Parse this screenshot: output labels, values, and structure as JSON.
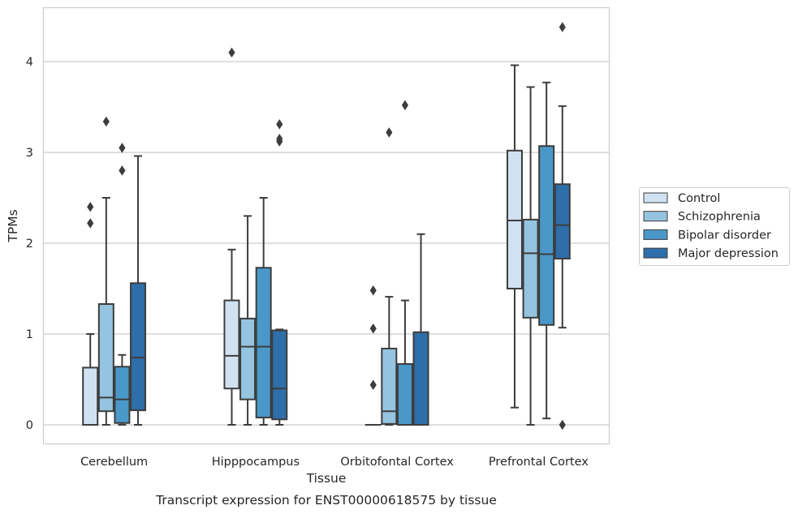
{
  "chart_data": {
    "type": "box",
    "title": "Transcript expression for ENST00000618575 by tissue",
    "xlabel": "Tissue",
    "ylabel": "TPMs",
    "ylim": [
      -0.21,
      4.6
    ],
    "yticks": [
      "0",
      "1",
      "2",
      "3",
      "4"
    ],
    "grid": true,
    "legend_position": "right",
    "categories": [
      "Cerebellum",
      "Hipppocampus",
      "Orbitofontal Cortex",
      "Prefrontal Cortex"
    ],
    "series": [
      {
        "name": "Control",
        "color": "#d0e1f2",
        "boxes": [
          {
            "whislo": 0,
            "q1": 0,
            "med": 0,
            "q3": 0.63,
            "whishi": 1.0,
            "fliers": [
              2.22,
              2.4
            ]
          },
          {
            "whislo": 0,
            "q1": 0.4,
            "med": 0.76,
            "q3": 1.37,
            "whishi": 1.93,
            "fliers": [
              4.1
            ]
          },
          {
            "whislo": 0,
            "q1": 0,
            "med": 0,
            "q3": 0,
            "whishi": 0,
            "fliers": [
              0.44,
              1.06,
              1.48
            ]
          },
          {
            "whislo": 0.19,
            "q1": 1.5,
            "med": 2.25,
            "q3": 3.02,
            "whishi": 3.96,
            "fliers": []
          }
        ]
      },
      {
        "name": "Schizophrenia",
        "color": "#94c4df",
        "boxes": [
          {
            "whislo": 0,
            "q1": 0.15,
            "med": 0.3,
            "q3": 1.33,
            "whishi": 2.5,
            "fliers": [
              3.34
            ]
          },
          {
            "whislo": 0,
            "q1": 0.28,
            "med": 0.86,
            "q3": 1.17,
            "whishi": 2.3,
            "fliers": []
          },
          {
            "whislo": 0,
            "q1": 0.01,
            "med": 0.15,
            "q3": 0.84,
            "whishi": 1.41,
            "fliers": [
              3.22
            ]
          },
          {
            "whislo": 0,
            "q1": 1.18,
            "med": 1.89,
            "q3": 2.26,
            "whishi": 3.72,
            "fliers": []
          }
        ]
      },
      {
        "name": "Bipolar disorder",
        "color": "#4a98c9",
        "boxes": [
          {
            "whislo": 0,
            "q1": 0.02,
            "med": 0.28,
            "q3": 0.64,
            "whishi": 0.77,
            "fliers": [
              2.8,
              3.05
            ]
          },
          {
            "whislo": 0,
            "q1": 0.08,
            "med": 0.86,
            "q3": 1.73,
            "whishi": 2.5,
            "fliers": []
          },
          {
            "whislo": 0,
            "q1": 0,
            "med": 0,
            "q3": 0.67,
            "whishi": 1.37,
            "fliers": [
              3.52
            ]
          },
          {
            "whislo": 0.07,
            "q1": 1.1,
            "med": 1.88,
            "q3": 3.07,
            "whishi": 3.77,
            "fliers": []
          }
        ]
      },
      {
        "name": "Major depression",
        "color": "#2e6ea9",
        "boxes": [
          {
            "whislo": 0,
            "q1": 0.16,
            "med": 0.74,
            "q3": 1.56,
            "whishi": 2.96,
            "fliers": []
          },
          {
            "whislo": 0,
            "q1": 0.06,
            "med": 0.4,
            "q3": 1.04,
            "whishi": 1.05,
            "fliers": [
              3.12,
              3.15,
              3.31
            ]
          },
          {
            "whislo": 0,
            "q1": 0,
            "med": 0,
            "q3": 1.02,
            "whishi": 2.1,
            "fliers": []
          },
          {
            "whislo": 1.07,
            "q1": 1.83,
            "med": 2.2,
            "q3": 2.65,
            "whishi": 3.51,
            "fliers": [
              0,
              4.38
            ]
          }
        ]
      }
    ]
  }
}
